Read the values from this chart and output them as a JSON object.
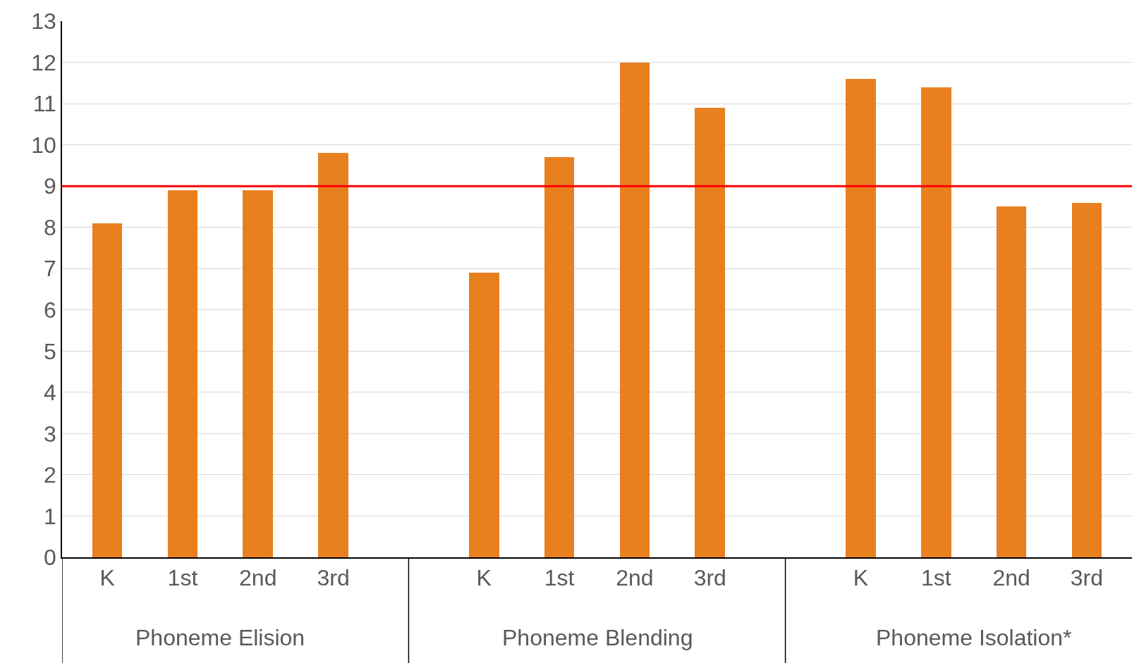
{
  "chart_data": {
    "type": "bar",
    "categories": [
      "K",
      "1st",
      "2nd",
      "3rd",
      "K",
      "1st",
      "2nd",
      "3rd",
      "K",
      "1st",
      "2nd",
      "3rd"
    ],
    "values": [
      8.1,
      8.9,
      8.9,
      9.8,
      6.9,
      9.7,
      12.0,
      10.9,
      11.6,
      11.4,
      8.5,
      8.6
    ],
    "color": "#e8801f",
    "annotations": [
      "Phoneme Elision",
      "Phoneme Blending",
      "Phoneme Isolation*"
    ],
    "ylim": [
      0,
      13
    ],
    "yticks": [
      0,
      1,
      2,
      3,
      4,
      5,
      6,
      7,
      8,
      9,
      10,
      11,
      12,
      13
    ],
    "grid": "y",
    "legend": false,
    "ref_lines": [
      {
        "axis": "y",
        "value": 9,
        "color": "#ff0000"
      }
    ]
  }
}
